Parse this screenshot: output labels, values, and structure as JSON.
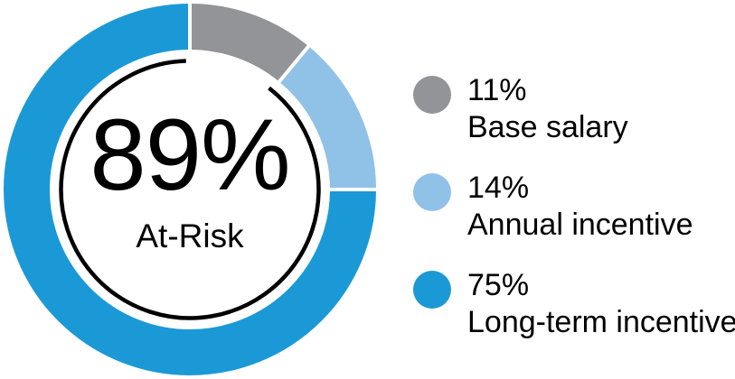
{
  "page": {
    "background_color": "#ffffff",
    "text_color": "#000000"
  },
  "chart_data": {
    "type": "donut",
    "direction": "clockwise",
    "start_angle_deg": 0,
    "legend_position": "right",
    "separator_color": "#ffffff",
    "inner_arc_color": "#000000",
    "segments": [
      {
        "label": "Base salary",
        "value": 11,
        "pct_label": "11%",
        "color": "#929497",
        "at_risk": false
      },
      {
        "label": "Annual incentive",
        "value": 14,
        "pct_label": "14%",
        "color": "#90C1E7",
        "at_risk": true
      },
      {
        "label": "Long-term incentive",
        "value": 75,
        "pct_label": "75%",
        "color": "#1B99D6",
        "at_risk": true
      }
    ],
    "center": {
      "value_label": "89%",
      "label": "At-Risk",
      "at_risk_pct": 89
    }
  }
}
